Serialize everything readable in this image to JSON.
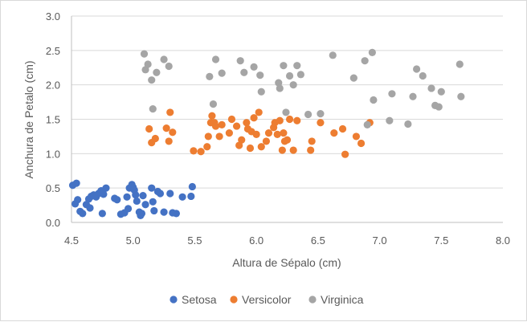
{
  "chart_data": {
    "type": "scatter",
    "title": "",
    "xlabel": "Altura de Sépalo (cm)",
    "ylabel": "Anchura de Petalo (cm)",
    "xlim": [
      4.5,
      8.0
    ],
    "ylim": [
      0.0,
      3.0
    ],
    "xticks": [
      4.5,
      5.0,
      5.5,
      6.0,
      6.5,
      7.0,
      7.5,
      8.0
    ],
    "yticks": [
      0.0,
      0.5,
      1.0,
      1.5,
      2.0,
      2.5,
      3.0
    ],
    "x_tick_labels": [
      "4.5",
      "5.0",
      "5.5",
      "6.0",
      "6.5",
      "7.0",
      "7.5",
      "8.0"
    ],
    "y_tick_labels": [
      "0.0",
      "0.5",
      "1.0",
      "1.5",
      "2.0",
      "2.5",
      "3.0"
    ],
    "grid": "horizontal",
    "legend_position": "bottom",
    "series": [
      {
        "name": "Setosa",
        "color": "#4472c4",
        "points": [
          [
            4.51,
            0.54
          ],
          [
            4.54,
            0.57
          ],
          [
            4.55,
            0.33
          ],
          [
            4.53,
            0.27
          ],
          [
            4.57,
            0.16
          ],
          [
            4.59,
            0.13
          ],
          [
            4.62,
            0.26
          ],
          [
            4.64,
            0.34
          ],
          [
            4.66,
            0.38
          ],
          [
            4.65,
            0.21
          ],
          [
            4.68,
            0.4
          ],
          [
            4.7,
            0.37
          ],
          [
            4.72,
            0.42
          ],
          [
            4.74,
            0.46
          ],
          [
            4.76,
            0.41
          ],
          [
            4.78,
            0.5
          ],
          [
            4.75,
            0.13
          ],
          [
            4.85,
            0.35
          ],
          [
            4.87,
            0.33
          ],
          [
            4.9,
            0.12
          ],
          [
            4.93,
            0.14
          ],
          [
            4.95,
            0.37
          ],
          [
            4.96,
            0.2
          ],
          [
            4.97,
            0.5
          ],
          [
            4.99,
            0.55
          ],
          [
            5.0,
            0.51
          ],
          [
            5.01,
            0.47
          ],
          [
            5.02,
            0.4
          ],
          [
            5.03,
            0.31
          ],
          [
            5.05,
            0.15
          ],
          [
            5.06,
            0.1
          ],
          [
            5.07,
            0.13
          ],
          [
            5.08,
            0.39
          ],
          [
            5.1,
            0.26
          ],
          [
            5.15,
            0.5
          ],
          [
            5.16,
            0.3
          ],
          [
            5.17,
            0.17
          ],
          [
            5.2,
            0.45
          ],
          [
            5.22,
            0.42
          ],
          [
            5.25,
            0.15
          ],
          [
            5.3,
            0.42
          ],
          [
            5.32,
            0.14
          ],
          [
            5.35,
            0.13
          ],
          [
            5.4,
            0.37
          ],
          [
            5.47,
            0.38
          ],
          [
            5.48,
            0.52
          ]
        ]
      },
      {
        "name": "Versicolor",
        "color": "#ed7d31",
        "points": [
          [
            5.13,
            1.36
          ],
          [
            5.15,
            1.16
          ],
          [
            5.18,
            1.22
          ],
          [
            5.27,
            1.37
          ],
          [
            5.29,
            1.18
          ],
          [
            5.3,
            1.6
          ],
          [
            5.32,
            1.31
          ],
          [
            5.49,
            1.04
          ],
          [
            5.55,
            1.03
          ],
          [
            5.6,
            1.1
          ],
          [
            5.61,
            1.25
          ],
          [
            5.63,
            1.45
          ],
          [
            5.64,
            1.55
          ],
          [
            5.66,
            1.45
          ],
          [
            5.67,
            1.4
          ],
          [
            5.7,
            1.25
          ],
          [
            5.72,
            1.42
          ],
          [
            5.78,
            1.3
          ],
          [
            5.8,
            1.5
          ],
          [
            5.84,
            1.4
          ],
          [
            5.86,
            1.12
          ],
          [
            5.88,
            1.2
          ],
          [
            5.92,
            1.45
          ],
          [
            5.93,
            1.36
          ],
          [
            5.95,
            1.08
          ],
          [
            5.96,
            1.32
          ],
          [
            5.98,
            1.52
          ],
          [
            6.0,
            1.28
          ],
          [
            6.02,
            1.6
          ],
          [
            6.04,
            1.1
          ],
          [
            6.08,
            1.18
          ],
          [
            6.1,
            1.3
          ],
          [
            6.14,
            1.38
          ],
          [
            6.15,
            1.45
          ],
          [
            6.17,
            1.28
          ],
          [
            6.19,
            1.48
          ],
          [
            6.21,
            1.05
          ],
          [
            6.22,
            1.3
          ],
          [
            6.23,
            1.18
          ],
          [
            6.25,
            1.2
          ],
          [
            6.27,
            1.5
          ],
          [
            6.3,
            1.05
          ],
          [
            6.33,
            1.48
          ],
          [
            6.44,
            1.05
          ],
          [
            6.45,
            1.18
          ],
          [
            6.52,
            1.45
          ],
          [
            6.63,
            1.3
          ],
          [
            6.7,
            1.36
          ],
          [
            6.72,
            0.99
          ],
          [
            6.81,
            1.25
          ],
          [
            6.85,
            1.15
          ],
          [
            6.92,
            1.45
          ]
        ]
      },
      {
        "name": "Virginica",
        "color": "#a5a5a5",
        "points": [
          [
            5.09,
            2.45
          ],
          [
            5.1,
            2.22
          ],
          [
            5.12,
            2.3
          ],
          [
            5.15,
            2.07
          ],
          [
            5.16,
            1.65
          ],
          [
            5.19,
            2.18
          ],
          [
            5.25,
            2.37
          ],
          [
            5.29,
            2.27
          ],
          [
            5.62,
            2.12
          ],
          [
            5.65,
            1.72
          ],
          [
            5.67,
            2.37
          ],
          [
            5.72,
            2.17
          ],
          [
            5.87,
            2.35
          ],
          [
            5.9,
            2.18
          ],
          [
            5.98,
            2.26
          ],
          [
            6.03,
            2.14
          ],
          [
            6.04,
            1.9
          ],
          [
            6.18,
            2.03
          ],
          [
            6.19,
            1.95
          ],
          [
            6.22,
            2.28
          ],
          [
            6.24,
            1.6
          ],
          [
            6.27,
            2.13
          ],
          [
            6.3,
            2.0
          ],
          [
            6.33,
            2.28
          ],
          [
            6.36,
            2.15
          ],
          [
            6.42,
            1.57
          ],
          [
            6.52,
            1.58
          ],
          [
            6.62,
            2.43
          ],
          [
            6.79,
            2.1
          ],
          [
            6.88,
            2.35
          ],
          [
            6.9,
            1.42
          ],
          [
            6.94,
            2.47
          ],
          [
            6.95,
            1.78
          ],
          [
            7.08,
            1.48
          ],
          [
            7.1,
            1.87
          ],
          [
            7.23,
            1.43
          ],
          [
            7.27,
            1.83
          ],
          [
            7.3,
            2.23
          ],
          [
            7.35,
            2.13
          ],
          [
            7.42,
            1.95
          ],
          [
            7.45,
            1.7
          ],
          [
            7.48,
            1.68
          ],
          [
            7.5,
            1.9
          ],
          [
            7.65,
            2.3
          ],
          [
            7.66,
            1.83
          ]
        ]
      }
    ]
  }
}
